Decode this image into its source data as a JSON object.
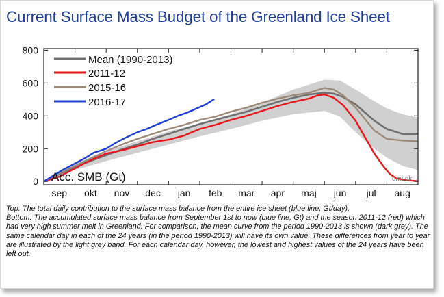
{
  "title": "Current Surface Mass Budget of the Greenland Ice Sheet",
  "credit": "dmi.dk",
  "caption": {
    "top": "Top: The total daily contribution to the surface mass balance from the entire ice sheet (blue line, Gt/day).",
    "bottom": "Bottom: The accumulated surface mass balance from September 1st to now (blue line, Gt) and the season 2011-12 (red) which had very high summer melt in Greenland. For comparison, the mean curve from the period 1990-2013 is shown (dark grey). The same calendar day in each of the 24 years (in the period 1990-2013) will have its own value. These differences from year to year are illustrated by the light grey band. For each calendar day, however, the lowest and highest values of the 24 years have been left out."
  },
  "chart_data": {
    "type": "line",
    "ylabel": "Acc. SMB (Gt)",
    "ylim": [
      -20,
      810
    ],
    "xlim": [
      0,
      12
    ],
    "yticks": [
      0,
      200,
      400,
      600,
      800
    ],
    "yticklabels": [
      "0",
      "200",
      "400",
      "600",
      "800"
    ],
    "months": [
      "sep",
      "okt",
      "nov",
      "dec",
      "jan",
      "feb",
      "mar",
      "apr",
      "maj",
      "jun",
      "jul",
      "aug"
    ],
    "legend_placement": "top-left",
    "band": {
      "x": [
        0,
        1,
        2,
        3,
        4,
        5,
        6,
        7,
        8,
        9,
        9.5,
        10,
        10.5,
        11,
        11.5,
        12
      ],
      "low": [
        0,
        70,
        125,
        175,
        225,
        275,
        320,
        370,
        410,
        430,
        395,
        300,
        215,
        145,
        95,
        70
      ],
      "high": [
        0,
        110,
        185,
        245,
        305,
        355,
        410,
        480,
        560,
        620,
        615,
        560,
        500,
        445,
        410,
        390
      ]
    },
    "series": [
      {
        "name": "Mean (1990-2013)",
        "color": "#707070",
        "x": [
          0,
          0.5,
          1,
          1.5,
          2,
          2.5,
          3,
          3.5,
          4,
          4.5,
          5,
          5.5,
          6,
          6.5,
          7,
          7.5,
          8,
          8.5,
          9,
          9.3,
          9.6,
          10,
          10.3,
          10.6,
          11,
          11.5,
          12
        ],
        "y": [
          0,
          45,
          90,
          125,
          160,
          195,
          225,
          260,
          290,
          320,
          350,
          375,
          400,
          425,
          455,
          485,
          510,
          530,
          540,
          535,
          515,
          470,
          420,
          370,
          320,
          290,
          290
        ]
      },
      {
        "name": "2011-12",
        "color": "#e8151b",
        "x": [
          0,
          0.5,
          1,
          1.5,
          2,
          2.5,
          3,
          3.5,
          4,
          4.5,
          5,
          5.5,
          6,
          6.5,
          7,
          7.5,
          8,
          8.5,
          8.8,
          9,
          9.3,
          9.6,
          10,
          10.3,
          10.6,
          10.9,
          11.1,
          11.3,
          11.6,
          12
        ],
        "y": [
          0,
          30,
          80,
          130,
          170,
          190,
          215,
          240,
          255,
          280,
          320,
          345,
          375,
          400,
          430,
          460,
          485,
          505,
          525,
          530,
          510,
          465,
          370,
          270,
          170,
          90,
          45,
          20,
          8,
          2
        ]
      },
      {
        "name": "2015-16",
        "color": "#9d8b78",
        "x": [
          0,
          0.5,
          1,
          1.5,
          2,
          2.5,
          3,
          3.5,
          4,
          4.5,
          5,
          5.5,
          6,
          6.5,
          7,
          7.5,
          8,
          8.5,
          9,
          9.3,
          9.6,
          10,
          10.3,
          10.6,
          11,
          11.5,
          12
        ],
        "y": [
          0,
          50,
          95,
          140,
          185,
          225,
          260,
          290,
          320,
          345,
          375,
          395,
          425,
          450,
          480,
          505,
          525,
          540,
          570,
          560,
          525,
          450,
          380,
          310,
          260,
          250,
          245
        ]
      },
      {
        "name": "2016-17",
        "color": "#1f3fd6",
        "x": [
          0,
          0.3,
          0.6,
          1,
          1.3,
          1.6,
          2,
          2.3,
          2.6,
          3,
          3.3,
          3.6,
          4,
          4.3,
          4.6,
          4.9,
          5.2,
          5.45
        ],
        "y": [
          0,
          35,
          70,
          110,
          140,
          175,
          200,
          235,
          265,
          300,
          320,
          345,
          375,
          400,
          420,
          445,
          470,
          500
        ]
      }
    ]
  }
}
